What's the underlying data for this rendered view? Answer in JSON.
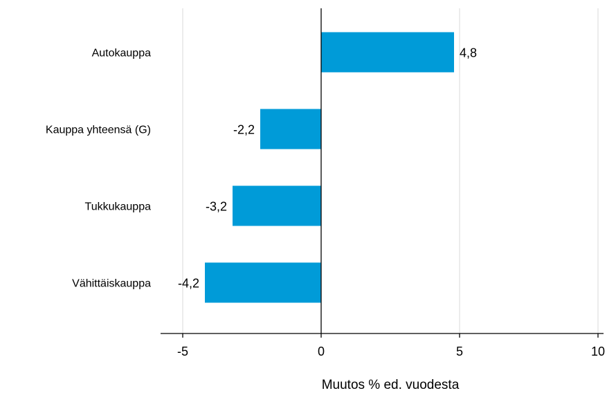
{
  "chart_data": {
    "type": "bar",
    "orientation": "horizontal",
    "categories": [
      "Autokauppa",
      "Kauppa yhteensä (G)",
      "Tukkukauppa",
      "Vähittäiskauppa"
    ],
    "values": [
      4.8,
      -2.2,
      -3.2,
      -4.2
    ],
    "value_labels": [
      "4,8",
      "-2,2",
      "-3,2",
      "-4,2"
    ],
    "xlabel": "Muutos % ed. vuodesta",
    "xlim": [
      -5.8,
      10.2
    ],
    "xticks": [
      -5,
      0,
      5,
      10
    ],
    "xtick_labels": [
      "-5",
      "0",
      "5",
      "10"
    ],
    "grid": true,
    "bar_color": "#009bd8"
  }
}
